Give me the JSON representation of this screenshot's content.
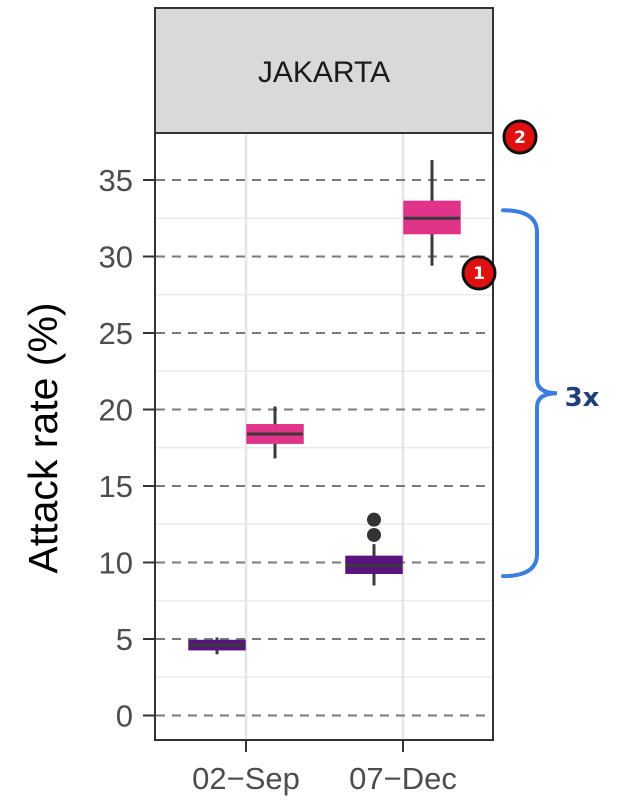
{
  "chart_data": {
    "type": "boxplot",
    "facet": "JAKARTA",
    "ylabel": "Attack rate (%)",
    "ylim": [
      0,
      37
    ],
    "yticks": [
      0,
      5,
      10,
      15,
      20,
      25,
      30,
      35
    ],
    "categories": [
      "02−Sep",
      "07−Dec"
    ],
    "boxes": [
      {
        "category": 0,
        "offset": -0.5,
        "color": "#5b1380",
        "whisker_low": 4.0,
        "q1": 4.3,
        "median": 4.6,
        "q3": 4.9,
        "whisker_high": 5.1,
        "outliers": []
      },
      {
        "category": 0,
        "offset": 0.5,
        "color": "#e0338a",
        "whisker_low": 16.8,
        "q1": 17.8,
        "median": 18.4,
        "q3": 19.0,
        "whisker_high": 20.2,
        "outliers": []
      },
      {
        "category": 1,
        "offset": -0.5,
        "color": "#5b1380",
        "whisker_low": 8.5,
        "q1": 9.3,
        "median": 9.8,
        "q3": 10.4,
        "whisker_high": 11.2,
        "outliers": [
          11.8,
          12.8
        ]
      },
      {
        "category": 1,
        "offset": 0.5,
        "color": "#e0338a",
        "whisker_low": 29.4,
        "q1": 31.5,
        "median": 32.5,
        "q3": 33.6,
        "whisker_high": 36.3,
        "outliers": []
      }
    ],
    "grid": true
  },
  "annotations": {
    "badges": [
      {
        "label": "1",
        "color": "#e01010"
      },
      {
        "label": "2",
        "color": "#e01010"
      }
    ],
    "bracket": {
      "label": "3x",
      "color": "#3b7de0",
      "from": 9.5,
      "to": 32.5
    }
  }
}
